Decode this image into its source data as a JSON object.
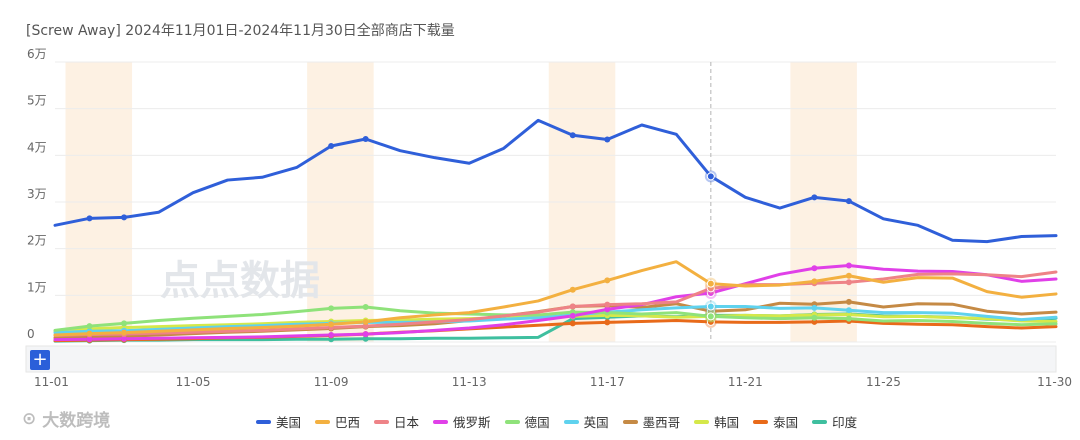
{
  "title": "[Screw Away] 2024年11月01日-2024年11月30日全部商店下载量",
  "watermark": "点点数据",
  "brand": "大数跨境",
  "zoom_button": "+",
  "highlight_color": "#fdf1e3",
  "chart_data": {
    "type": "line",
    "x": [
      "11-01",
      "11-02",
      "11-03",
      "11-04",
      "11-05",
      "11-06",
      "11-07",
      "11-08",
      "11-09",
      "11-10",
      "11-11",
      "11-12",
      "11-13",
      "11-14",
      "11-15",
      "11-16",
      "11-17",
      "11-18",
      "11-19",
      "11-20",
      "11-21",
      "11-22",
      "11-23",
      "11-24",
      "11-25",
      "11-26",
      "11-27",
      "11-28",
      "11-29",
      "11-30"
    ],
    "x_tick_labels": [
      "11-01",
      "11-05",
      "11-09",
      "11-13",
      "11-17",
      "11-21",
      "11-25",
      "11-30"
    ],
    "y_tick_labels": [
      "0",
      "1万",
      "2万",
      "3万",
      "4万",
      "5万",
      "6万"
    ],
    "ylim": [
      0,
      60000
    ],
    "weekend_bands": [
      [
        "11-02",
        "11-03"
      ],
      [
        "11-09",
        "11-10"
      ],
      [
        "11-16",
        "11-17"
      ],
      [
        "11-23",
        "11-24"
      ]
    ],
    "hover_x": "11-20",
    "legend_position": "bottom",
    "series": [
      {
        "name": "美国",
        "color": "#2f5fd9",
        "values": [
          25000,
          26500,
          26700,
          27800,
          32000,
          34700,
          35300,
          37400,
          42000,
          43500,
          41000,
          39500,
          38300,
          41500,
          47500,
          44300,
          43400,
          46500,
          44500,
          35500,
          31000,
          28700,
          31000,
          30200,
          26400,
          25000,
          21800,
          21500,
          22600,
          22800
        ]
      },
      {
        "name": "巴西",
        "color": "#f3b040",
        "values": [
          1500,
          1800,
          2000,
          2300,
          2600,
          2900,
          3100,
          3400,
          3800,
          4300,
          5200,
          5800,
          6300,
          7500,
          8800,
          11200,
          13200,
          15300,
          17200,
          12500,
          12000,
          12200,
          13000,
          14200,
          12800,
          13800,
          13700,
          10800,
          9600,
          10300
        ]
      },
      {
        "name": "日本",
        "color": "#ee8387",
        "values": [
          1400,
          1600,
          1700,
          1900,
          2100,
          2300,
          2500,
          2800,
          3100,
          3400,
          3800,
          4300,
          4800,
          5600,
          6400,
          7600,
          8000,
          8200,
          8600,
          11500,
          12300,
          12300,
          12600,
          12800,
          13500,
          14500,
          14600,
          14400,
          14000,
          15000
        ]
      },
      {
        "name": "俄罗斯",
        "color": "#e040e8",
        "values": [
          500,
          600,
          700,
          800,
          900,
          1000,
          1100,
          1300,
          1500,
          1700,
          2000,
          2500,
          3000,
          3700,
          4600,
          5600,
          7000,
          8000,
          9700,
          10500,
          12500,
          14500,
          15800,
          16400,
          15600,
          15200,
          15100,
          14400,
          13000,
          13500
        ]
      },
      {
        "name": "德国",
        "color": "#8fe27a",
        "values": [
          2500,
          3400,
          4000,
          4600,
          5100,
          5500,
          5900,
          6500,
          7200,
          7500,
          6700,
          6200,
          6000,
          5800,
          5800,
          6400,
          6300,
          6000,
          6300,
          5500,
          5200,
          5000,
          5200,
          5000,
          4500,
          4600,
          4400,
          4000,
          3700,
          3900
        ]
      },
      {
        "name": "英国",
        "color": "#5fd2ee",
        "values": [
          2000,
          2300,
          2400,
          2700,
          3000,
          3300,
          3500,
          3800,
          4000,
          4200,
          4200,
          4300,
          4500,
          4900,
          5200,
          5800,
          6400,
          6900,
          7300,
          7600,
          7600,
          7200,
          7300,
          6800,
          6300,
          6300,
          6200,
          5500,
          4800,
          5300
        ]
      },
      {
        "name": "墨西哥",
        "color": "#c58a45",
        "values": [
          900,
          1000,
          1200,
          1500,
          1800,
          2100,
          2300,
          2600,
          2900,
          3300,
          3500,
          3900,
          4600,
          5600,
          6500,
          7600,
          7800,
          7400,
          8200,
          6600,
          6900,
          8300,
          8100,
          8600,
          7500,
          8200,
          8100,
          6600,
          6000,
          6400
        ]
      },
      {
        "name": "韩国",
        "color": "#d5e84a",
        "values": [
          2300,
          2800,
          3100,
          3300,
          3500,
          3700,
          3900,
          4200,
          4400,
          4600,
          4700,
          4900,
          5000,
          5200,
          5400,
          5500,
          5700,
          5600,
          5300,
          5500,
          5700,
          5600,
          5800,
          5900,
          5400,
          5500,
          5200,
          5000,
          4500,
          4400
        ]
      },
      {
        "name": "泰国",
        "color": "#e86a1a",
        "values": [
          300,
          400,
          500,
          600,
          700,
          900,
          1000,
          1200,
          1400,
          1700,
          2100,
          2400,
          2800,
          3200,
          3600,
          4000,
          4200,
          4400,
          4600,
          4300,
          4200,
          4200,
          4300,
          4500,
          4000,
          3800,
          3700,
          3300,
          3000,
          3300
        ]
      },
      {
        "name": "印度",
        "color": "#3fbf9f",
        "values": [
          200,
          300,
          400,
          400,
          500,
          500,
          500,
          600,
          600,
          700,
          700,
          800,
          800,
          900,
          1000,
          5000,
          5300,
          5600,
          5400,
          5700,
          5700,
          5600,
          5900,
          6000,
          5600,
          5500,
          5300,
          4900,
          4700,
          5100
        ]
      }
    ]
  }
}
